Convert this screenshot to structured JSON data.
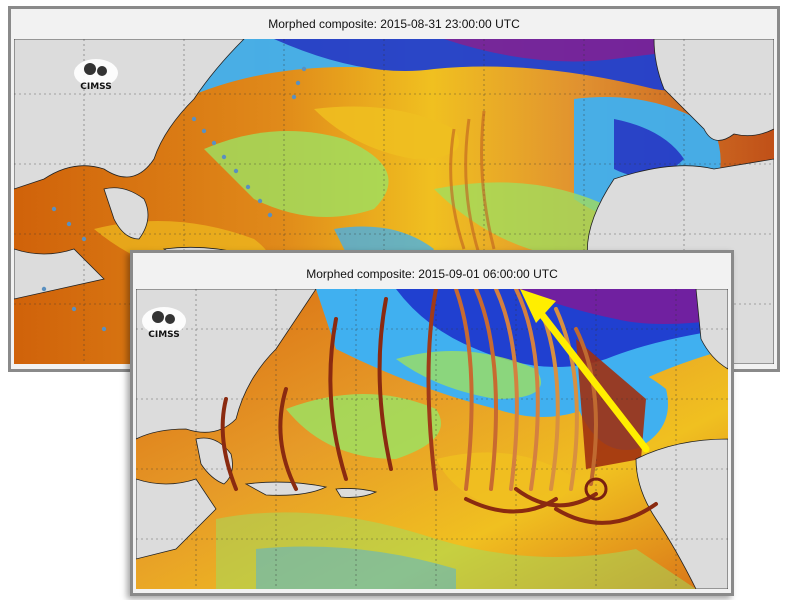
{
  "panels": {
    "back": {
      "title": "Morphed composite: 2015-08-31 23:00:00 UTC"
    },
    "front": {
      "title": "Morphed composite: 2015-09-01 06:00:00 UTC"
    }
  },
  "logo": {
    "text": "CIMSS"
  },
  "colors": {
    "dry": "#d0620a",
    "moist": "#f0c020",
    "humid": "#9ee060",
    "wet": "#40b0f0",
    "very_wet": "#2040d0",
    "saturated": "#7020a0",
    "land": "#dcdcdc",
    "arrow": "#ffee00",
    "track_dots": "#5a90c0"
  }
}
